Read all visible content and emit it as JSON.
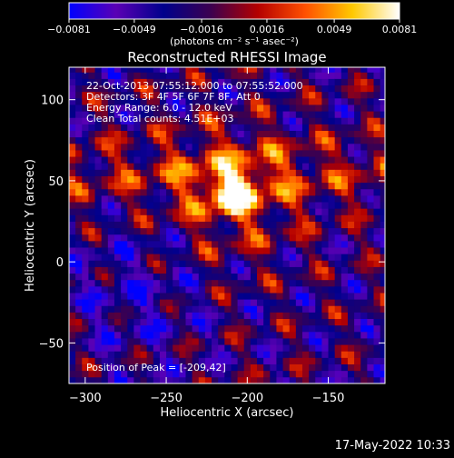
{
  "chart_data": {
    "type": "heatmap",
    "title": "Reconstructed RHESSI Image",
    "xlabel": "Heliocentric X (arcsec)",
    "ylabel": "Heliocentric Y (arcsec)",
    "xlim": [
      -310,
      -115
    ],
    "ylim": [
      -75,
      120
    ],
    "x_ticks": [
      -300,
      -250,
      -200,
      -150
    ],
    "y_ticks": [
      -50,
      0,
      50,
      100
    ],
    "colorbar": {
      "min": -0.0081,
      "max": 0.0081,
      "tick_values": [
        -0.0081,
        -0.0049,
        -0.0016,
        0.0016,
        0.0049,
        0.0081
      ],
      "tick_labels": [
        "-0.0081",
        "-0.0049",
        "-0.0016",
        "0.0016",
        "0.0049",
        "0.0081"
      ],
      "unit_label": "(photons cm⁻² s⁻¹ asec⁻²)",
      "colormap": [
        "#0000ff",
        "#5a00b4",
        "#00008c",
        "#3c0050",
        "#b40000",
        "#ff5000",
        "#ffc800",
        "#ffffff"
      ]
    },
    "peak_position": [
      -209,
      42
    ],
    "info_lines": [
      "22-Oct-2013 07:55:12.000 to 07:55:52.000",
      "Detectors: 3F 4F 5F 6F 7F 8F, Att 0",
      "Energy Range: 6.0 - 12.0 keV",
      "Clean     Total counts: 4.51E+03"
    ],
    "peak_label": "Position of Peak = [-209,42]"
  },
  "footer": {
    "date": "17-May-2022 10:33"
  }
}
